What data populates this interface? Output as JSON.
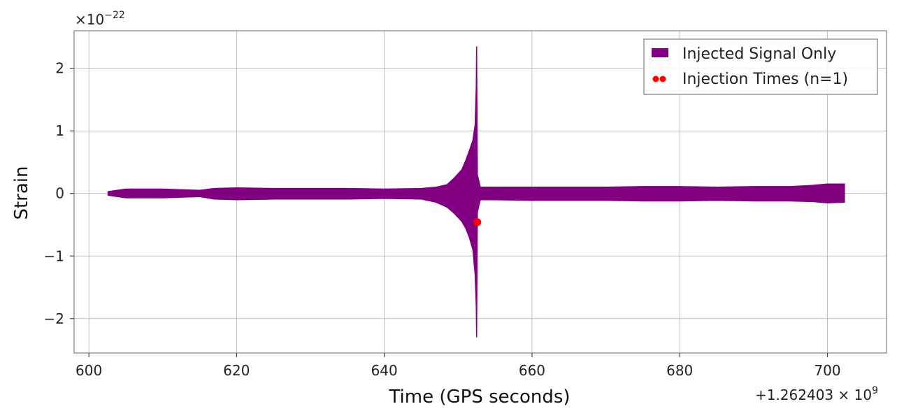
{
  "chart_data": {
    "type": "line",
    "title": "",
    "xlabel": "Time (GPS seconds)",
    "ylabel": "Strain",
    "x_offset_label": "+1.262403 × 10",
    "x_offset_exp": "9",
    "y_scale_label": "×10",
    "y_scale_exp": "−22",
    "xlim": [
      598,
      708
    ],
    "ylim": [
      -2.55,
      2.6
    ],
    "xticks": [
      600,
      620,
      640,
      660,
      680,
      700
    ],
    "xtick_labels": [
      "600",
      "620",
      "640",
      "660",
      "680",
      "700"
    ],
    "yticks": [
      2,
      1,
      0,
      -1,
      -2
    ],
    "ytick_labels": [
      "2",
      "1",
      "0",
      "−1",
      "−2"
    ],
    "grid": true,
    "legend_position": "top-right",
    "series": [
      {
        "name": "Injected Signal Only",
        "style": "filled-band",
        "color": "#800080",
        "envelope": {
          "x": [
            602.6,
            605,
            610,
            615,
            617,
            620,
            625,
            630,
            635,
            640,
            645,
            647,
            648.5,
            649.5,
            650.5,
            651,
            651.5,
            652,
            652.3,
            652.45,
            652.5,
            652.6,
            653,
            655,
            660,
            665,
            670,
            675,
            680,
            685,
            690,
            695,
            698,
            700,
            702.3
          ],
          "upper": [
            0.03,
            0.07,
            0.07,
            0.05,
            0.08,
            0.09,
            0.08,
            0.08,
            0.08,
            0.07,
            0.08,
            0.1,
            0.14,
            0.25,
            0.38,
            0.52,
            0.68,
            0.85,
            1.1,
            1.7,
            2.35,
            0.3,
            0.1,
            0.1,
            0.1,
            0.1,
            0.1,
            0.11,
            0.11,
            0.1,
            0.11,
            0.11,
            0.13,
            0.15,
            0.15
          ],
          "lower": [
            -0.03,
            -0.07,
            -0.07,
            -0.05,
            -0.09,
            -0.1,
            -0.09,
            -0.09,
            -0.09,
            -0.08,
            -0.09,
            -0.14,
            -0.22,
            -0.32,
            -0.45,
            -0.55,
            -0.7,
            -0.9,
            -1.3,
            -1.8,
            -2.3,
            -0.3,
            -0.1,
            -0.1,
            -0.11,
            -0.11,
            -0.11,
            -0.12,
            -0.12,
            -0.11,
            -0.12,
            -0.12,
            -0.13,
            -0.15,
            -0.14
          ]
        }
      },
      {
        "name": "Injection Times (n=1)",
        "style": "markers",
        "color": "#ff0000",
        "points": [
          {
            "x": 652.6,
            "y": -0.46
          }
        ]
      }
    ]
  }
}
